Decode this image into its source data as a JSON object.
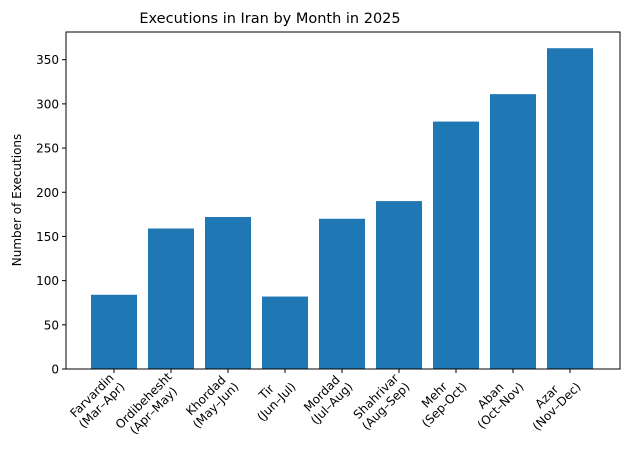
{
  "chart_data": {
    "type": "bar",
    "title": "Executions in Iran by Month in 2025",
    "xlabel": "",
    "ylabel": "Number of Executions",
    "ylim": [
      0,
      380
    ],
    "yticks": [
      0,
      50,
      100,
      150,
      200,
      250,
      300,
      350
    ],
    "grid": false,
    "bar_color": "#1f77b4",
    "categories": [
      {
        "name": "Farvardin",
        "range": "(Mar–Apr)"
      },
      {
        "name": "Ordibehesht",
        "range": "(Apr–May)"
      },
      {
        "name": "Khordad",
        "range": "(May–Jun)"
      },
      {
        "name": "Tir",
        "range": "(Jun–Jul)"
      },
      {
        "name": "Mordad",
        "range": "(Jul–Aug)"
      },
      {
        "name": "Shahrivar",
        "range": "(Aug–Sep)"
      },
      {
        "name": "Mehr",
        "range": "(Sep-Oct)"
      },
      {
        "name": "Aban",
        "range": "(Oct–Nov)"
      },
      {
        "name": "Azar",
        "range": "(Nov–Dec)"
      }
    ],
    "values": [
      84,
      159,
      172,
      82,
      170,
      190,
      280,
      311,
      363
    ]
  }
}
